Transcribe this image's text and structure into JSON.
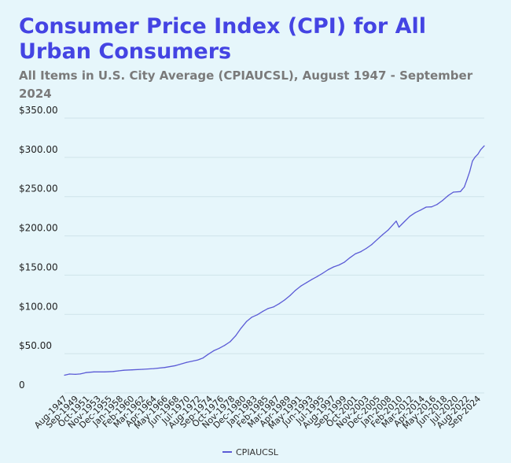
{
  "chart_data": {
    "type": "line",
    "title": "Consumer Price Index (CPI) for All Urban Consumers",
    "subtitle": "All Items in U.S. City Average (CPIAUCSL), August 1947 - September 2024",
    "xlabel": "",
    "ylabel": "",
    "ylim": [
      0,
      350
    ],
    "yticks": [
      "0",
      "$50.00",
      "$100.00",
      "$150.00",
      "$200.00",
      "$250.00",
      "$300.00",
      "$350.00"
    ],
    "xticks": [
      "Aug-1947",
      "Sep-1949",
      "Oct-1951",
      "Nov-1953",
      "Dec-1955",
      "Jan-1958",
      "Feb-1960",
      "Mar-1962",
      "Apr-1964",
      "May-1966",
      "Jun-1968",
      "Jul-1970",
      "Aug-1972",
      "Sep-1974",
      "Oct-1976",
      "Nov-1978",
      "Dec-1980",
      "Jan-1983",
      "Feb-1985",
      "Mar-1987",
      "Apr-1989",
      "May-1991",
      "Jun-1993",
      "Jul-1995",
      "Aug-1997",
      "Sep-1999",
      "Oct-2001",
      "Nov-2003",
      "Dec-2005",
      "Jan-2008",
      "Feb-2010",
      "Mar-2012",
      "Apr-2014",
      "May-2016",
      "Jun-2018",
      "Jul-2020",
      "Aug-2022",
      "Sep-2024"
    ],
    "xlim": [
      1947.58,
      2024.67
    ],
    "grid": true,
    "legend_position": "bottom-center",
    "series": [
      {
        "name": "CPIAUCSL",
        "color": "#5b5bd6",
        "points": [
          [
            1947.58,
            22.6
          ],
          [
            1948.5,
            24.1
          ],
          [
            1949.58,
            23.7
          ],
          [
            1950.5,
            24.2
          ],
          [
            1951.5,
            25.9
          ],
          [
            1953.0,
            26.8
          ],
          [
            1955.0,
            26.8
          ],
          [
            1956.5,
            27.3
          ],
          [
            1957.5,
            28.1
          ],
          [
            1958.5,
            28.9
          ],
          [
            1960.0,
            29.4
          ],
          [
            1962.0,
            30.1
          ],
          [
            1964.0,
            31.0
          ],
          [
            1966.0,
            32.4
          ],
          [
            1968.0,
            34.8
          ],
          [
            1970.0,
            38.8
          ],
          [
            1972.0,
            41.8
          ],
          [
            1973.0,
            44.4
          ],
          [
            1974.0,
            49.3
          ],
          [
            1975.0,
            53.8
          ],
          [
            1976.0,
            56.9
          ],
          [
            1977.0,
            60.6
          ],
          [
            1978.0,
            65.2
          ],
          [
            1979.0,
            72.6
          ],
          [
            1980.0,
            82.4
          ],
          [
            1981.0,
            90.9
          ],
          [
            1982.0,
            96.5
          ],
          [
            1983.0,
            99.6
          ],
          [
            1984.0,
            103.9
          ],
          [
            1985.0,
            107.6
          ],
          [
            1986.0,
            109.6
          ],
          [
            1987.0,
            113.6
          ],
          [
            1988.0,
            118.3
          ],
          [
            1989.0,
            124.0
          ],
          [
            1990.0,
            130.7
          ],
          [
            1991.0,
            136.2
          ],
          [
            1992.0,
            140.3
          ],
          [
            1993.0,
            144.5
          ],
          [
            1994.0,
            148.2
          ],
          [
            1995.0,
            152.4
          ],
          [
            1996.0,
            156.9
          ],
          [
            1997.0,
            160.5
          ],
          [
            1998.0,
            163.0
          ],
          [
            1999.0,
            166.6
          ],
          [
            2000.0,
            172.2
          ],
          [
            2001.0,
            177.1
          ],
          [
            2002.0,
            179.9
          ],
          [
            2003.0,
            184.0
          ],
          [
            2004.0,
            188.9
          ],
          [
            2005.0,
            195.3
          ],
          [
            2006.0,
            201.6
          ],
          [
            2007.0,
            207.3
          ],
          [
            2008.5,
            218.8
          ],
          [
            2009.0,
            211.1
          ],
          [
            2009.5,
            214.6
          ],
          [
            2010.0,
            218.1
          ],
          [
            2011.0,
            224.9
          ],
          [
            2012.0,
            229.6
          ],
          [
            2013.0,
            233.0
          ],
          [
            2014.0,
            236.7
          ],
          [
            2015.0,
            237.0
          ],
          [
            2016.0,
            240.0
          ],
          [
            2017.0,
            245.1
          ],
          [
            2018.0,
            251.1
          ],
          [
            2019.0,
            255.7
          ],
          [
            2020.3,
            256.4
          ],
          [
            2020.6,
            259.0
          ],
          [
            2021.0,
            262.2
          ],
          [
            2021.5,
            271.7
          ],
          [
            2022.0,
            282.0
          ],
          [
            2022.5,
            295.3
          ],
          [
            2023.0,
            300.5
          ],
          [
            2023.5,
            304.1
          ],
          [
            2024.0,
            309.7
          ],
          [
            2024.67,
            314.7
          ]
        ]
      }
    ]
  }
}
